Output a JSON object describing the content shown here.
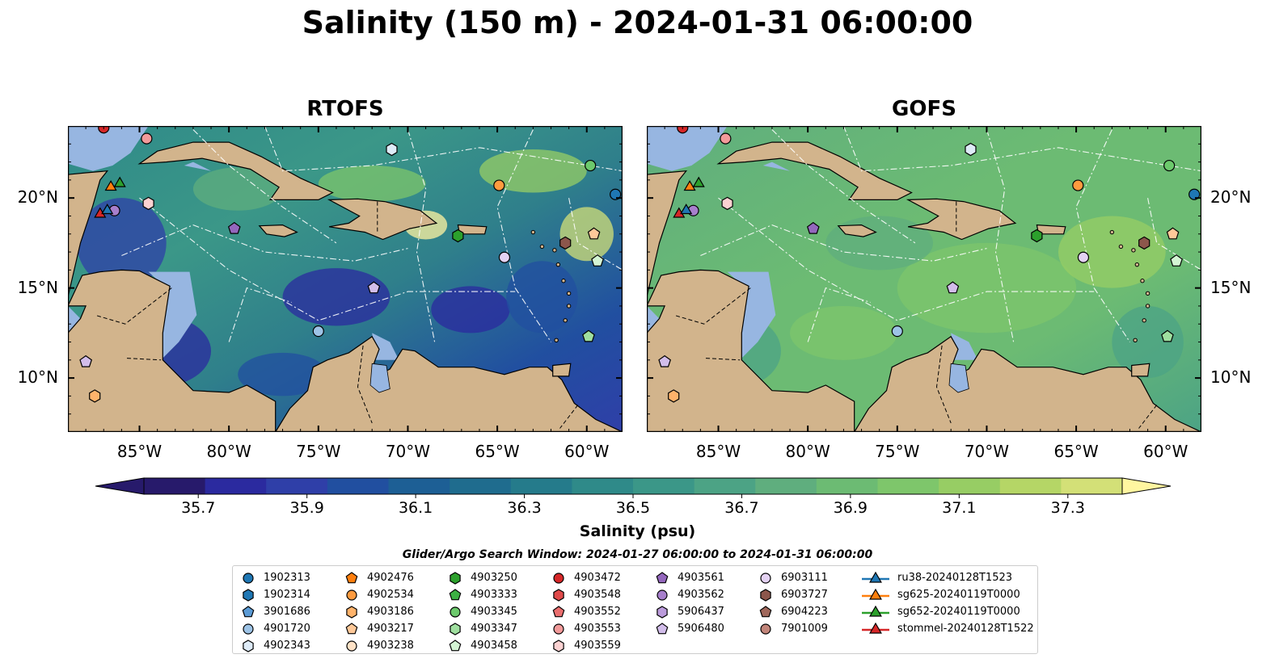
{
  "title": "Salinity (150 m) - 2024-01-31 06:00:00",
  "panels": [
    {
      "name": "RTOFS",
      "theme": "rtofs"
    },
    {
      "name": "GOFS",
      "theme": "gofs"
    }
  ],
  "map": {
    "lon_range": [
      -89,
      -58
    ],
    "lat_range": [
      7,
      24
    ],
    "lon_ticks": [
      "85°W",
      "80°W",
      "75°W",
      "70°W",
      "65°W",
      "60°W"
    ],
    "lon_tick_values": [
      -85,
      -80,
      -75,
      -70,
      -65,
      -60
    ],
    "lat_ticks": [
      "20°N",
      "15°N",
      "10°N"
    ],
    "lat_tick_values": [
      20,
      15,
      10
    ],
    "land_color": "#d2b48c",
    "shelf_color": "#97b6e1",
    "deep_pacific_color": "#271a6b"
  },
  "colorbar": {
    "label": "Salinity (psu)",
    "min": 35.6,
    "max": 37.4,
    "tick_labels": [
      "35.7",
      "35.9",
      "36.1",
      "36.3",
      "36.5",
      "36.7",
      "36.9",
      "37.1",
      "37.3"
    ],
    "tick_values": [
      35.7,
      35.9,
      36.1,
      36.3,
      36.5,
      36.7,
      36.9,
      37.1,
      37.3
    ],
    "colors": [
      "#271a6b",
      "#2b2a9f",
      "#2f3fa8",
      "#214fa0",
      "#1d5f95",
      "#1f6c8e",
      "#257b8b",
      "#2f8a89",
      "#3b9788",
      "#4ca385",
      "#5fae7e",
      "#6cbb73",
      "#7ec66b",
      "#97cd64",
      "#b5d666",
      "#d3e077"
    ],
    "extend_low_color": "#271a6b",
    "extend_high_color": "#fff6a0"
  },
  "search_window": "Glider/Argo Search Window: 2024-01-27 06:00:00 to 2024-01-31 06:00:00",
  "legend": {
    "columns": [
      [
        {
          "label": "1902313",
          "marker": "circle",
          "color": "#1f77b4"
        },
        {
          "label": "1902314",
          "marker": "hexagon",
          "color": "#1f77b4"
        },
        {
          "label": "3901686",
          "marker": "pentagon",
          "color": "#5b9bd5"
        },
        {
          "label": "4901720",
          "marker": "circle",
          "color": "#9dc3e6"
        },
        {
          "label": "4902343",
          "marker": "hexagon",
          "color": "#deebf7"
        }
      ],
      [
        {
          "label": "4902476",
          "marker": "pentagon",
          "color": "#ff7f0e"
        },
        {
          "label": "4902534",
          "marker": "circle",
          "color": "#ff9b3f"
        },
        {
          "label": "4903186",
          "marker": "hexagon",
          "color": "#ffb36b"
        },
        {
          "label": "4903217",
          "marker": "pentagon",
          "color": "#ffc999"
        },
        {
          "label": "4903238",
          "marker": "circle",
          "color": "#ffe2c6"
        }
      ],
      [
        {
          "label": "4903250",
          "marker": "hexagon",
          "color": "#2ca02c"
        },
        {
          "label": "4903333",
          "marker": "pentagon",
          "color": "#3cb043"
        },
        {
          "label": "4903345",
          "marker": "circle",
          "color": "#6cc96c"
        },
        {
          "label": "4903347",
          "marker": "hexagon",
          "color": "#9fdf9f"
        },
        {
          "label": "4903458",
          "marker": "pentagon",
          "color": "#d4f5d4"
        }
      ],
      [
        {
          "label": "4903472",
          "marker": "circle",
          "color": "#d62728"
        },
        {
          "label": "4903548",
          "marker": "hexagon",
          "color": "#e04a4a"
        },
        {
          "label": "4903552",
          "marker": "pentagon",
          "color": "#ea6e6e"
        },
        {
          "label": "4903553",
          "marker": "circle",
          "color": "#f29a9a"
        },
        {
          "label": "4903559",
          "marker": "hexagon",
          "color": "#fbd2d2"
        }
      ],
      [
        {
          "label": "4903561",
          "marker": "pentagon",
          "color": "#9467bd"
        },
        {
          "label": "4903562",
          "marker": "circle",
          "color": "#a77fcc"
        },
        {
          "label": "5906437",
          "marker": "hexagon",
          "color": "#bb9bdb"
        },
        {
          "label": "5906480",
          "marker": "pentagon",
          "color": "#d2bdea"
        }
      ],
      [
        {
          "label": "6903111",
          "marker": "circle",
          "color": "#e4d2f3"
        },
        {
          "label": "6903727",
          "marker": "hexagon",
          "color": "#8c564b"
        },
        {
          "label": "6904223",
          "marker": "pentagon",
          "color": "#a0685c"
        },
        {
          "label": "7901009",
          "marker": "circle",
          "color": "#c2857a"
        }
      ],
      [
        {
          "label": "ru38-20240128T1523",
          "marker": "triangle-line",
          "color": "#1f77b4"
        },
        {
          "label": "sg625-20240119T0000",
          "marker": "triangle-line",
          "color": "#ff7f0e"
        },
        {
          "label": "sg652-20240119T0000",
          "marker": "triangle-line",
          "color": "#2ca02c"
        },
        {
          "label": "stommel-20240128T1522",
          "marker": "triangle-line",
          "color": "#d62728"
        }
      ]
    ]
  },
  "map_markers": [
    {
      "lon": -87.0,
      "lat": 23.9,
      "marker": "circle",
      "color": "#d62728"
    },
    {
      "lon": -84.6,
      "lat": 23.3,
      "marker": "circle",
      "color": "#f29a9a"
    },
    {
      "lon": -84.5,
      "lat": 19.7,
      "marker": "hexagon",
      "color": "#fbd2d2"
    },
    {
      "lon": -86.4,
      "lat": 19.3,
      "marker": "circle",
      "color": "#a77fcc"
    },
    {
      "lon": -79.7,
      "lat": 18.3,
      "marker": "pentagon",
      "color": "#9467bd"
    },
    {
      "lon": -70.9,
      "lat": 22.7,
      "marker": "hexagon",
      "color": "#deebf7"
    },
    {
      "lon": -67.2,
      "lat": 17.9,
      "marker": "hexagon",
      "color": "#2ca02c"
    },
    {
      "lon": -64.9,
      "lat": 20.7,
      "marker": "circle",
      "color": "#ff9b3f"
    },
    {
      "lon": -64.6,
      "lat": 16.7,
      "marker": "circle",
      "color": "#e4d2f3"
    },
    {
      "lon": -59.8,
      "lat": 21.8,
      "marker": "circle",
      "color": "#6cc96c"
    },
    {
      "lon": -58.4,
      "lat": 20.2,
      "marker": "circle",
      "color": "#1f77b4"
    },
    {
      "lon": -61.2,
      "lat": 17.5,
      "marker": "hexagon",
      "color": "#8c564b"
    },
    {
      "lon": -59.6,
      "lat": 18.0,
      "marker": "pentagon",
      "color": "#ffc999"
    },
    {
      "lon": -59.4,
      "lat": 16.5,
      "marker": "pentagon",
      "color": "#d4f5d4"
    },
    {
      "lon": -59.9,
      "lat": 12.3,
      "marker": "pentagon",
      "color": "#9fdf9f"
    },
    {
      "lon": -71.9,
      "lat": 15.0,
      "marker": "pentagon",
      "color": "#d2bdea"
    },
    {
      "lon": -75.0,
      "lat": 12.6,
      "marker": "circle",
      "color": "#9dc3e6"
    },
    {
      "lon": -88.0,
      "lat": 10.9,
      "marker": "pentagon",
      "color": "#d2bdea"
    },
    {
      "lon": -87.5,
      "lat": 9.0,
      "marker": "hexagon",
      "color": "#ffb36b"
    },
    {
      "lon": -87.2,
      "lat": 19.1,
      "marker": "triangle",
      "color": "#d62728"
    },
    {
      "lon": -86.8,
      "lat": 19.3,
      "marker": "triangle",
      "color": "#1f77b4"
    },
    {
      "lon": -86.1,
      "lat": 20.8,
      "marker": "triangle",
      "color": "#2ca02c"
    },
    {
      "lon": -86.6,
      "lat": 20.6,
      "marker": "triangle",
      "color": "#ff7f0e"
    }
  ]
}
